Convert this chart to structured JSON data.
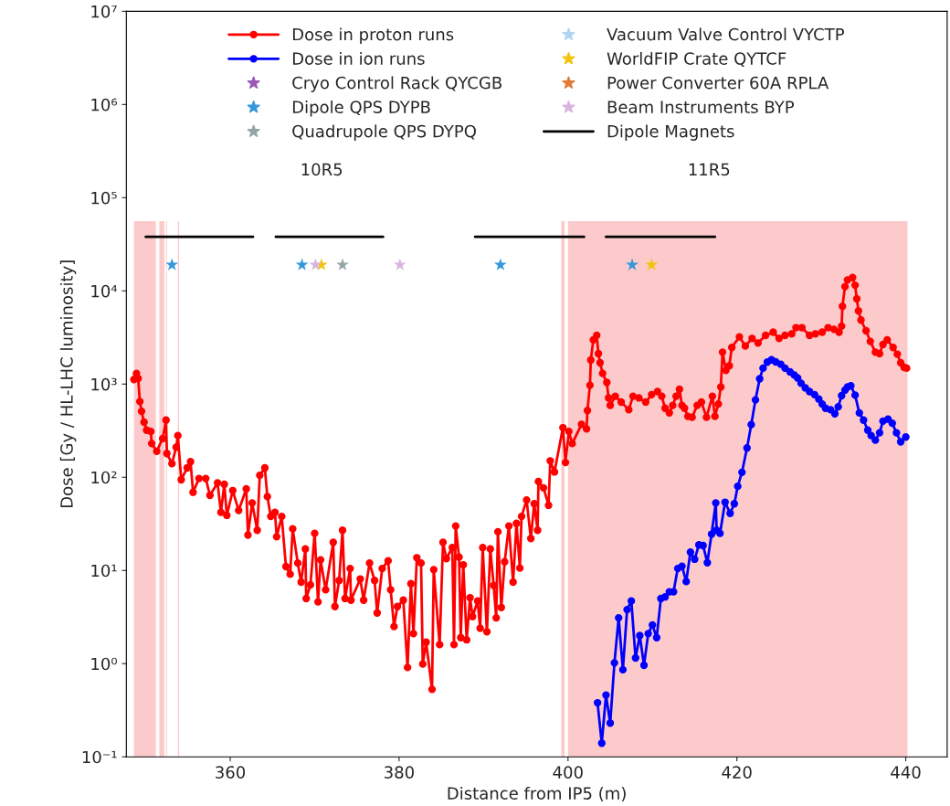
{
  "chart_data": {
    "type": "line",
    "xlabel": "Distance from IP5 (m)",
    "ylabel": "Dose [Gy / HL-LHC luminosity]",
    "xlim": [
      347.7,
      444.9
    ],
    "xticks": [
      360,
      380,
      400,
      420,
      440
    ],
    "ylim": [
      0.1,
      10000000
    ],
    "log": "y",
    "yticks": [
      {
        "value": 0.1,
        "label": "10⁻¹"
      },
      {
        "value": 1,
        "label": "10⁰"
      },
      {
        "value": 10,
        "label": "10¹"
      },
      {
        "value": 100,
        "label": "10²"
      },
      {
        "value": 1000,
        "label": "10³"
      },
      {
        "value": 10000,
        "label": "10⁴"
      },
      {
        "value": 100000,
        "label": "10⁵"
      },
      {
        "value": 1000000,
        "label": "10⁶"
      },
      {
        "value": 10000000,
        "label": "10⁷"
      }
    ],
    "grid": false,
    "legend": "top",
    "annotations": [
      "10R5",
      "11R5"
    ],
    "series": [
      {
        "type": "area",
        "color": "#fccaca",
        "x": [
          348.6,
          351.2,
          351.4,
          351.6,
          352.2,
          352.3,
          352.4,
          352.5,
          352.6,
          353.8,
          353.95,
          354.0,
          399.2,
          399.6,
          399.8,
          400.0,
          440.2
        ],
        "values": [
          56000,
          56000,
          null,
          56000,
          56000,
          null,
          56000,
          56000,
          null,
          56000,
          56000,
          null,
          56000,
          56000,
          null,
          56000,
          56000
        ]
      },
      {
        "name": "Dose in proton runs",
        "marker": "circle",
        "color": "#ff0000",
        "x": [
          348.6,
          348.9,
          349.1,
          349.3,
          349.5,
          349.8,
          350.1,
          350.6,
          350.7,
          351.3,
          352.0,
          352.4,
          352.5,
          353.1,
          353.6,
          353.8,
          354.2,
          354.9,
          355.3,
          355.6,
          356.3,
          357.1,
          357.6,
          358.5,
          358.9,
          359.3,
          359.6,
          360.3,
          361.0,
          361.9,
          362.1,
          362.6,
          363.2,
          363.5,
          364.1,
          364.4,
          364.8,
          365.3,
          365.5,
          366.1,
          366.6,
          367.1,
          367.4,
          368.0,
          368.4,
          368.9,
          369.0,
          369.5,
          370.0,
          370.4,
          370.7,
          371.3,
          372.2,
          372.4,
          372.9,
          373.3,
          373.6,
          374.2,
          374.3,
          375.4,
          375.8,
          376.5,
          377.1,
          377.4,
          378.0,
          378.7,
          379.0,
          379.4,
          379.8,
          380.5,
          381.0,
          381.4,
          381.7,
          382.1,
          382.6,
          382.8,
          383.2,
          383.9,
          384.1,
          384.8,
          385.2,
          385.6,
          386.3,
          386.5,
          386.7,
          387.1,
          387.3,
          387.6,
          388.0,
          388.4,
          388.7,
          389.3,
          389.6,
          389.9,
          390.4,
          390.8,
          391.2,
          391.5,
          391.7,
          392.1,
          392.5,
          393.0,
          393.5,
          393.9,
          394.3,
          394.5,
          395.1,
          395.6,
          396.0,
          396.4,
          396.5,
          397.1,
          397.7,
          397.9,
          398.4,
          399.4,
          399.7,
          400.1,
          400.5,
          401.6,
          402.2,
          402.3,
          402.6,
          402.7,
          403.0,
          403.4,
          403.6,
          403.8,
          404.1,
          404.6,
          404.8,
          405.0,
          405.6,
          406.3,
          407.2,
          407.7,
          408.4,
          409.2,
          409.9,
          410.6,
          411.1,
          411.5,
          412.0,
          412.4,
          412.8,
          413.2,
          413.5,
          413.8,
          414.2,
          414.7,
          415.3,
          415.8,
          416.4,
          417.1,
          417.4,
          417.8,
          418.1,
          418.3,
          418.7,
          419.1,
          419.4,
          420.3,
          421.0,
          421.8,
          422.5,
          423.4,
          424.3,
          425.0,
          425.7,
          426.5,
          427.0,
          427.7,
          428.6,
          429.3,
          430.1,
          430.8,
          431.5,
          432.1,
          432.4,
          432.5,
          432.8,
          433.1,
          433.7,
          434.0,
          434.2,
          434.4,
          434.7,
          435.3,
          435.8,
          436.4,
          436.9,
          437.3,
          437.8,
          438.5,
          439.0,
          439.4,
          439.8,
          440.1
        ],
        "values": [
          1120,
          1300,
          1150,
          650,
          510,
          390,
          320,
          310,
          230,
          190,
          260,
          410,
          180,
          140,
          210,
          280,
          94,
          126,
          147,
          69,
          97,
          97,
          64,
          87,
          42,
          84,
          39,
          72,
          44,
          75,
          24,
          53,
          27,
          105,
          126,
          62,
          38,
          42,
          23,
          38,
          11,
          9.1,
          28,
          12,
          7.5,
          17,
          5.0,
          7.0,
          25,
          4.6,
          13,
          6.2,
          20,
          4.1,
          7.8,
          27,
          5.0,
          10.5,
          4.8,
          8.1,
          4.8,
          12,
          7.8,
          3.5,
          10.5,
          12.7,
          6.2,
          2.5,
          4.1,
          4.8,
          0.91,
          7.2,
          2.1,
          13.7,
          12,
          0.99,
          1.7,
          0.53,
          10.2,
          1.6,
          20,
          13.4,
          17.6,
          1.6,
          30,
          13.9,
          1.9,
          11.5,
          1.8,
          5.1,
          3.2,
          4.7,
          2.4,
          17.6,
          2.2,
          17,
          6.9,
          3.1,
          26,
          4.0,
          12.4,
          30,
          7.5,
          32,
          10.6,
          38,
          57,
          22,
          52,
          27,
          90,
          77,
          50,
          150,
          114,
          340,
          144,
          310,
          230,
          370,
          330,
          520,
          970,
          1810,
          2980,
          3330,
          2120,
          1690,
          1300,
          1040,
          710,
          590,
          740,
          640,
          530,
          740,
          710,
          640,
          770,
          830,
          740,
          550,
          490,
          590,
          740,
          880,
          590,
          550,
          450,
          440,
          590,
          640,
          440,
          740,
          450,
          610,
          930,
          2200,
          1400,
          1570,
          2470,
          3210,
          2560,
          3090,
          2760,
          3330,
          3600,
          3090,
          3330,
          3460,
          4030,
          4030,
          3330,
          3460,
          3600,
          4030,
          3870,
          3600,
          4180,
          6820,
          11100,
          13100,
          13900,
          11500,
          8220,
          6100,
          4860,
          3730,
          2870,
          2200,
          2120,
          2660,
          2980,
          2470,
          2090,
          1690,
          1510,
          1480
        ]
      },
      {
        "name": "Dose in ion runs",
        "marker": "circle",
        "color": "#0000ff",
        "x": [
          403.5,
          404.0,
          404.5,
          405.0,
          405.5,
          406.0,
          406.5,
          407.0,
          407.5,
          408.0,
          408.5,
          409.0,
          409.5,
          410.0,
          410.5,
          411.0,
          411.5,
          412.0,
          412.5,
          413.0,
          413.5,
          414.0,
          414.5,
          415.0,
          415.5,
          416.0,
          416.5,
          417.0,
          417.5,
          417.6,
          418.0,
          418.6,
          419.2,
          419.7,
          420.1,
          420.6,
          421.2,
          421.7,
          422.2,
          422.7,
          423.1,
          423.6,
          424.1,
          424.6,
          425.2,
          425.7,
          426.3,
          426.8,
          427.2,
          427.6,
          428.1,
          428.6,
          429.2,
          429.7,
          430.1,
          430.5,
          431.1,
          431.6,
          432.0,
          432.4,
          432.8,
          433.1,
          433.5,
          434.0,
          434.5,
          435.0,
          435.5,
          435.9,
          436.4,
          436.9,
          437.3,
          437.9,
          438.4,
          438.9,
          439.4,
          440.0
        ],
        "values": [
          0.38,
          0.14,
          0.46,
          0.23,
          1.02,
          3.1,
          0.86,
          3.8,
          4.7,
          1.15,
          2.0,
          0.96,
          2.1,
          2.6,
          1.9,
          5.0,
          5.2,
          5.9,
          5.9,
          10.5,
          11.1,
          7.6,
          15.7,
          13.2,
          18.8,
          18.5,
          12.1,
          24.5,
          53,
          27,
          25,
          54,
          41,
          52,
          80,
          113,
          206,
          367,
          676,
          1140,
          1480,
          1720,
          1820,
          1730,
          1630,
          1480,
          1350,
          1250,
          1160,
          1020,
          910,
          830,
          770,
          690,
          610,
          550,
          530,
          480,
          570,
          750,
          860,
          930,
          960,
          760,
          490,
          410,
          320,
          280,
          250,
          300,
          400,
          420,
          380,
          300,
          240,
          270
        ]
      },
      {
        "name": "Cryo Control Rack QYCGB",
        "type": "scatter",
        "marker": "star",
        "color": "#9b59b6"
      },
      {
        "name": "Dipole QPS DYPB",
        "type": "scatter",
        "marker": "star",
        "color": "#3498db",
        "x": [
          353.1,
          368.5,
          392.0,
          407.6
        ],
        "values": [
          19000,
          19000,
          19000,
          19000
        ]
      },
      {
        "name": "Quadrupole QPS DYPQ",
        "type": "scatter",
        "marker": "star",
        "color": "#95a5a6",
        "x": [
          373.3
        ],
        "values": [
          19000
        ]
      },
      {
        "name": "Vacuum Valve Control VYCTP",
        "type": "scatter",
        "marker": "star",
        "color": "#aed6f1"
      },
      {
        "name": "WorldFIP Crate QYTCF",
        "type": "scatter",
        "marker": "star",
        "color": "#f1c40f",
        "x": [
          370.8,
          409.9
        ],
        "values": [
          19000,
          19000
        ]
      },
      {
        "name": "Power Converter 60A RPLA",
        "type": "scatter",
        "marker": "star",
        "color": "#e07b39"
      },
      {
        "name": "Beam Instruments BYP",
        "type": "scatter",
        "marker": "star",
        "color": "#d7b5e0",
        "x": [
          370.1,
          380.1
        ],
        "values": [
          19000,
          19000
        ]
      },
      {
        "name": "Dipole Magnets",
        "color": "#000000",
        "x": [
          350.0,
          362.7,
          364.0,
          365.4,
          378.1,
          383.0,
          389.0,
          401.9,
          403.0,
          404.5,
          417.4
        ],
        "values": [
          38000,
          38000,
          null,
          38000,
          38000,
          null,
          38000,
          38000,
          null,
          38000,
          38000
        ]
      }
    ]
  }
}
